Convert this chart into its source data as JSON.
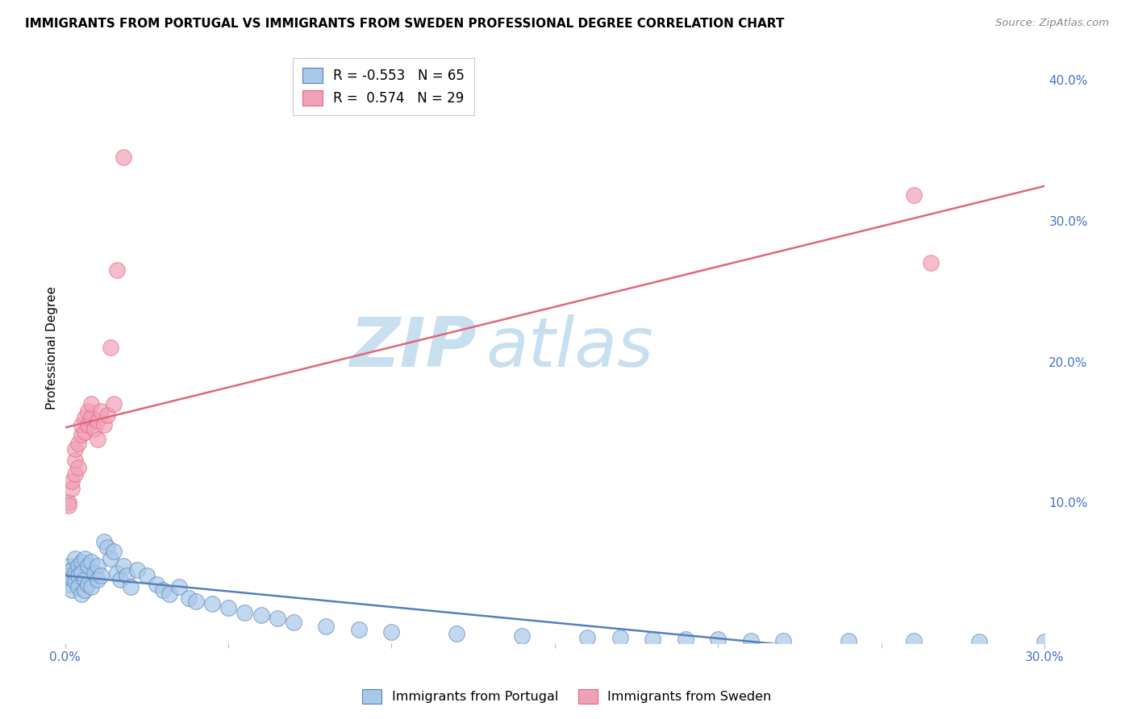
{
  "title": "IMMIGRANTS FROM PORTUGAL VS IMMIGRANTS FROM SWEDEN PROFESSIONAL DEGREE CORRELATION CHART",
  "source": "Source: ZipAtlas.com",
  "ylabel": "Professional Degree",
  "xmin": 0.0,
  "xmax": 0.3,
  "ymin": 0.0,
  "ymax": 0.42,
  "x_ticks": [
    0.0,
    0.05,
    0.1,
    0.15,
    0.2,
    0.25,
    0.3
  ],
  "y_ticks_right": [
    0.0,
    0.1,
    0.2,
    0.3,
    0.4
  ],
  "y_tick_labels_right": [
    "",
    "10.0%",
    "20.0%",
    "30.0%",
    "40.0%"
  ],
  "portugal_color": "#a8c8e8",
  "sweden_color": "#f0a0b8",
  "portugal_line_color": "#5580bb",
  "sweden_line_color": "#e06878",
  "watermark_zip": "ZIP",
  "watermark_atlas": "atlas",
  "watermark_color": "#c8dff0",
  "portugal_R": -0.553,
  "portugal_N": 65,
  "sweden_R": 0.574,
  "sweden_N": 29,
  "portugal_scatter_x": [
    0.001,
    0.001,
    0.001,
    0.002,
    0.002,
    0.002,
    0.003,
    0.003,
    0.003,
    0.004,
    0.004,
    0.004,
    0.005,
    0.005,
    0.005,
    0.006,
    0.006,
    0.006,
    0.007,
    0.007,
    0.008,
    0.008,
    0.009,
    0.01,
    0.01,
    0.011,
    0.012,
    0.013,
    0.014,
    0.015,
    0.016,
    0.017,
    0.018,
    0.019,
    0.02,
    0.022,
    0.025,
    0.028,
    0.03,
    0.032,
    0.035,
    0.038,
    0.04,
    0.045,
    0.05,
    0.055,
    0.06,
    0.065,
    0.07,
    0.08,
    0.09,
    0.1,
    0.12,
    0.14,
    0.16,
    0.17,
    0.18,
    0.19,
    0.2,
    0.21,
    0.22,
    0.24,
    0.26,
    0.28,
    0.3
  ],
  "portugal_scatter_y": [
    0.055,
    0.048,
    0.042,
    0.052,
    0.046,
    0.038,
    0.06,
    0.05,
    0.044,
    0.055,
    0.048,
    0.04,
    0.058,
    0.05,
    0.035,
    0.06,
    0.045,
    0.038,
    0.055,
    0.042,
    0.058,
    0.04,
    0.05,
    0.055,
    0.045,
    0.048,
    0.072,
    0.068,
    0.06,
    0.065,
    0.05,
    0.045,
    0.055,
    0.048,
    0.04,
    0.052,
    0.048,
    0.042,
    0.038,
    0.035,
    0.04,
    0.032,
    0.03,
    0.028,
    0.025,
    0.022,
    0.02,
    0.018,
    0.015,
    0.012,
    0.01,
    0.008,
    0.007,
    0.005,
    0.004,
    0.004,
    0.003,
    0.003,
    0.003,
    0.002,
    0.002,
    0.002,
    0.002,
    0.001,
    0.001
  ],
  "sweden_scatter_x": [
    0.001,
    0.001,
    0.002,
    0.002,
    0.003,
    0.003,
    0.003,
    0.004,
    0.004,
    0.005,
    0.005,
    0.006,
    0.006,
    0.007,
    0.007,
    0.008,
    0.008,
    0.009,
    0.01,
    0.01,
    0.011,
    0.012,
    0.013,
    0.014,
    0.015,
    0.016,
    0.018,
    0.26,
    0.265
  ],
  "sweden_scatter_y": [
    0.1,
    0.098,
    0.11,
    0.115,
    0.12,
    0.13,
    0.138,
    0.125,
    0.142,
    0.148,
    0.155,
    0.15,
    0.16,
    0.155,
    0.165,
    0.16,
    0.17,
    0.152,
    0.158,
    0.145,
    0.165,
    0.155,
    0.162,
    0.21,
    0.17,
    0.265,
    0.345,
    0.318,
    0.27
  ],
  "background_color": "#ffffff",
  "grid_color": "#e0e0e0"
}
